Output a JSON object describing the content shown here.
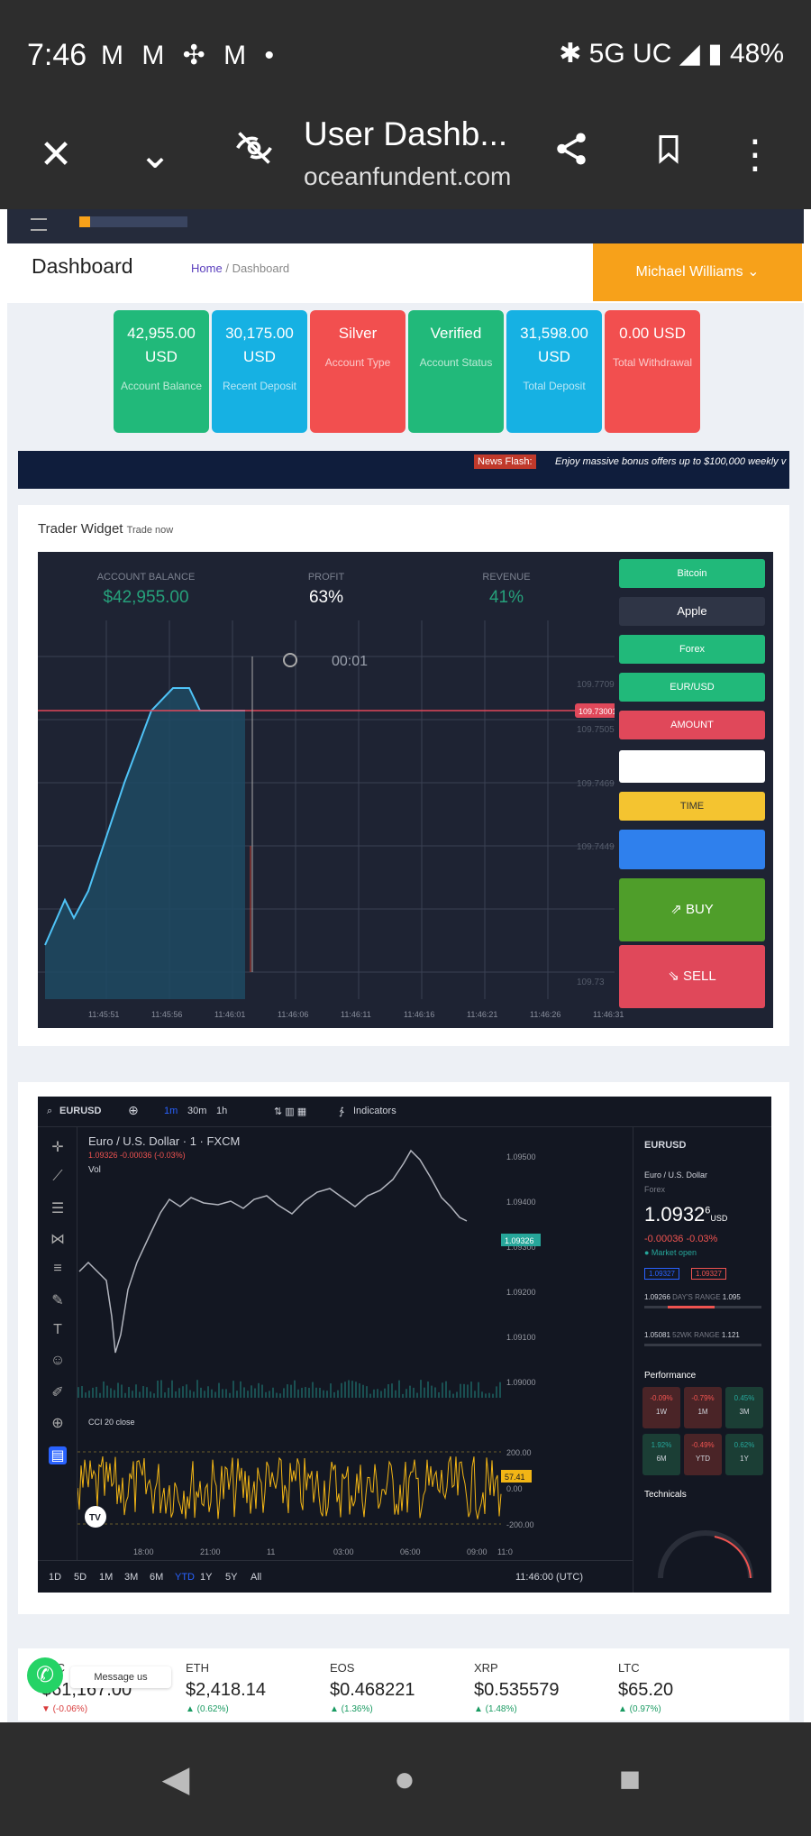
{
  "status_bar": {
    "time": "7:46",
    "indicators": "M M ✣ M •",
    "network": "✱ 5G UC ◢ ▮ 48%"
  },
  "browser": {
    "title": "User Dashb...",
    "url": "oceanfundent.com",
    "close_icon": "close-icon",
    "collapse_icon": "chevron-down-icon",
    "privacy_icon": "eye-off-icon",
    "share_icon": "share-icon",
    "bookmark_icon": "bookmark-icon",
    "menu_icon": "more-vert-icon"
  },
  "header": {
    "page_title": "Dashboard",
    "breadcrumb_home": "Home",
    "breadcrumb_sep": "/",
    "breadcrumb_current": "Dashboard",
    "user_name": "Michael Williams"
  },
  "stats": [
    {
      "value": "42,955.00 USD",
      "label": "Account Balance",
      "color": "#21b97a"
    },
    {
      "value": "30,175.00 USD",
      "label": "Recent Deposit",
      "color": "#16b1e3"
    },
    {
      "value": "Silver",
      "label": "Account Type",
      "color": "#f24f4f"
    },
    {
      "value": "Verified",
      "label": "Account Status",
      "color": "#21b97a"
    },
    {
      "value": "31,598.00 USD",
      "label": "Total Deposit",
      "color": "#16b1e3"
    },
    {
      "value": "0.00 USD",
      "label": "Total Withdrawal",
      "color": "#f24f4f"
    }
  ],
  "news": {
    "tag": "News Flash:",
    "message": "Enjoy massive bonus offers up to $100,000 weekly v"
  },
  "trader_widget": {
    "title": "Trader Widget",
    "subtitle": "Trade now",
    "account_balance_label": "ACCOUNT BALANCE",
    "account_balance": "$42,955.00",
    "profit_label": "PROFIT",
    "profit": "63%",
    "revenue_label": "REVENUE",
    "revenue": "41%",
    "timer": "00:01",
    "current_price": "109.73001",
    "price_labels": [
      "109.77099",
      "109.75056",
      "109.74693",
      "109.74490",
      "109.73"
    ],
    "time_labels": [
      "11:45:51",
      "11:45:56",
      "11:46:01",
      "11:46:06",
      "11:46:11",
      "11:46:16",
      "11:46:21",
      "11:46:26",
      "11:46:31"
    ],
    "asset_select": "Bitcoin",
    "stock_select": "Apple",
    "market_select": "Forex",
    "pair_select": "EUR/USD",
    "amount_label": "AMOUNT",
    "amount_value": "",
    "time_label": "TIME",
    "buy_label": "BUY",
    "sell_label": "SELL"
  },
  "tv_chart": {
    "symbol": "EURUSD",
    "intervals": [
      "1m",
      "30m",
      "1h"
    ],
    "indicators_label": "Indicators",
    "title": "Euro / U.S. Dollar · 1 · FXCM",
    "ohlc": "1.09326  -0.00036 (-0.03%)",
    "vol_label": "Vol",
    "cci_label": "CCI 20 close",
    "price_axis": [
      "1.09500",
      "1.09400",
      "1.09300",
      "1.09200",
      "1.09100",
      "1.09000"
    ],
    "current_price_tag": "1.09326",
    "cci_tag": "57.41",
    "cci_axis": [
      "200.00",
      "0.00",
      "-200.00"
    ],
    "time_axis": [
      "18:00",
      "21:00",
      "11",
      "03:00",
      "06:00",
      "09:00",
      "11:0"
    ],
    "ranges": [
      "1D",
      "5D",
      "1M",
      "3M",
      "6M",
      "YTD",
      "1Y",
      "5Y",
      "All"
    ],
    "clock": "11:46:00 (UTC)",
    "side_symbol": "EURUSD",
    "side_name": "Euro / U.S. Dollar",
    "side_source": "Forex",
    "side_price": "1.0932",
    "side_price_small": "6",
    "side_currency": "USD",
    "side_change": "-0.00036  -0.03%",
    "side_market": "● Market open",
    "bid": "1.09327",
    "ask": "1.09327",
    "day_range_low": "1.09266",
    "day_range_label": "DAY'S RANGE",
    "day_range_high": "1.095",
    "week_range_low": "1.05081",
    "week_range_label": "52WK RANGE",
    "week_range_high": "1.121",
    "performance_label": "Performance",
    "perf": [
      {
        "v": "-0.09%",
        "p": "1W"
      },
      {
        "v": "-0.79%",
        "p": "1M"
      },
      {
        "v": "0.45%",
        "p": "3M"
      },
      {
        "v": "1.92%",
        "p": "6M"
      },
      {
        "v": "-0.49%",
        "p": "YTD"
      },
      {
        "v": "0.62%",
        "p": "1Y"
      }
    ],
    "technicals_label": "Technicals"
  },
  "ticker": [
    {
      "name": "BTC",
      "price": "$61,167.00",
      "change": "▼ (-0.06%)",
      "color": "#d93c3c"
    },
    {
      "name": "ETH",
      "price": "$2,418.14",
      "change": "▲ (0.62%)",
      "color": "#1a9b62"
    },
    {
      "name": "EOS",
      "price": "$0.468221",
      "change": "▲ (1.36%)",
      "color": "#1a9b62"
    },
    {
      "name": "XRP",
      "price": "$0.535579",
      "change": "▲ (1.48%)",
      "color": "#1a9b62"
    },
    {
      "name": "LTC",
      "price": "$65.20",
      "change": "▲ (0.97%)",
      "color": "#1a9b62"
    }
  ],
  "chat": {
    "label": "Message us"
  },
  "nav": {
    "back": "◀",
    "home": "●",
    "recents": "■"
  }
}
